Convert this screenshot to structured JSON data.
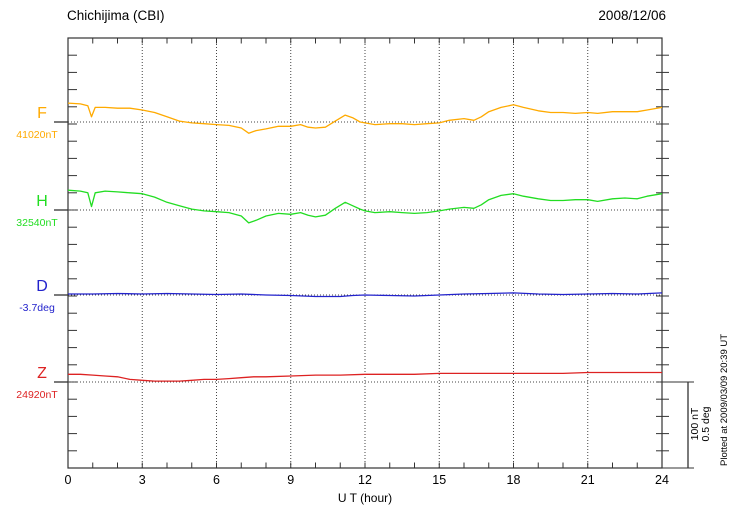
{
  "header": {
    "title": "Chichijima (CBI)",
    "date": "2008/12/06"
  },
  "axis": {
    "xlabel": "U T (hour)",
    "x_ticks": [
      0,
      3,
      6,
      9,
      12,
      15,
      18,
      21,
      24
    ]
  },
  "side_note": "Plotted at 2009/03/09 20:39 UT",
  "scale_bar": {
    "labels": [
      "100 nT",
      "0.5 deg"
    ]
  },
  "colors": {
    "frame": "#333333",
    "grid_dotted": "#444444",
    "text": "#000000",
    "trace_F": "#FFAA00",
    "trace_H": "#22DD22",
    "trace_D": "#2222CC",
    "trace_Z": "#DD2222"
  },
  "chart_data": {
    "type": "line",
    "title": "Chichijima (CBI)",
    "date": "2008/12/06",
    "xlabel": "U T (hour)",
    "x_range": [
      0,
      24
    ],
    "x_ticks": [
      0,
      3,
      6,
      9,
      12,
      15,
      18,
      21,
      24
    ],
    "grid": "dotted vertical lines every 3 h; dotted horizontal baseline per component",
    "legend_position": "left margin component labels",
    "scale_per_division": {
      "nT": 100,
      "deg": 0.5
    },
    "series": [
      {
        "name": "F",
        "unit": "nT",
        "baseline": 41020,
        "baseline_label": "41020nT",
        "color": "#FFAA00",
        "points": [
          [
            0,
            41042
          ],
          [
            0.5,
            41041
          ],
          [
            0.8,
            41039
          ],
          [
            0.95,
            41026
          ],
          [
            1.1,
            41037
          ],
          [
            1.5,
            41037
          ],
          [
            2,
            41036
          ],
          [
            2.5,
            41036
          ],
          [
            3,
            41034
          ],
          [
            3.5,
            41031
          ],
          [
            4,
            41026
          ],
          [
            4.5,
            41021
          ],
          [
            5,
            41019
          ],
          [
            5.5,
            41018
          ],
          [
            6,
            41017
          ],
          [
            6.5,
            41016
          ],
          [
            7,
            41013
          ],
          [
            7.3,
            41007
          ],
          [
            7.6,
            41010
          ],
          [
            8,
            41012
          ],
          [
            8.5,
            41015
          ],
          [
            9,
            41015
          ],
          [
            9.4,
            41017
          ],
          [
            9.7,
            41014
          ],
          [
            10,
            41013
          ],
          [
            10.4,
            41014
          ],
          [
            10.8,
            41021
          ],
          [
            11.2,
            41028
          ],
          [
            11.5,
            41025
          ],
          [
            11.8,
            41020
          ],
          [
            12,
            41019
          ],
          [
            12.4,
            41017
          ],
          [
            13,
            41018
          ],
          [
            13.5,
            41018
          ],
          [
            14,
            41017
          ],
          [
            14.5,
            41018
          ],
          [
            15,
            41019
          ],
          [
            15.4,
            41022
          ],
          [
            16,
            41024
          ],
          [
            16.4,
            41022
          ],
          [
            16.7,
            41026
          ],
          [
            17,
            41032
          ],
          [
            17.5,
            41037
          ],
          [
            18,
            41040
          ],
          [
            18.4,
            41037
          ],
          [
            19,
            41033
          ],
          [
            19.5,
            41031
          ],
          [
            20,
            41031
          ],
          [
            20.5,
            41030
          ],
          [
            21,
            41031
          ],
          [
            21.4,
            41030
          ],
          [
            22,
            41032
          ],
          [
            22.5,
            41032
          ],
          [
            23,
            41032
          ],
          [
            23.4,
            41034
          ],
          [
            24,
            41037
          ]
        ]
      },
      {
        "name": "H",
        "unit": "nT",
        "baseline": 32540,
        "baseline_label": "32540nT",
        "color": "#22DD22",
        "points": [
          [
            0,
            32563
          ],
          [
            0.5,
            32562
          ],
          [
            0.8,
            32560
          ],
          [
            0.95,
            32544
          ],
          [
            1.1,
            32560
          ],
          [
            1.5,
            32562
          ],
          [
            2,
            32561
          ],
          [
            2.5,
            32560
          ],
          [
            3,
            32559
          ],
          [
            3.5,
            32555
          ],
          [
            4,
            32549
          ],
          [
            4.5,
            32545
          ],
          [
            5,
            32541
          ],
          [
            5.5,
            32539
          ],
          [
            6,
            32538
          ],
          [
            6.5,
            32537
          ],
          [
            7,
            32533
          ],
          [
            7.3,
            32525
          ],
          [
            7.6,
            32528
          ],
          [
            8,
            32533
          ],
          [
            8.5,
            32536
          ],
          [
            9,
            32535
          ],
          [
            9.4,
            32537
          ],
          [
            9.7,
            32534
          ],
          [
            10,
            32532
          ],
          [
            10.4,
            32534
          ],
          [
            10.8,
            32542
          ],
          [
            11.2,
            32549
          ],
          [
            11.5,
            32545
          ],
          [
            11.8,
            32541
          ],
          [
            12,
            32539
          ],
          [
            12.4,
            32537
          ],
          [
            13,
            32538
          ],
          [
            13.5,
            32537
          ],
          [
            14,
            32536
          ],
          [
            14.5,
            32537
          ],
          [
            15,
            32539
          ],
          [
            15.4,
            32541
          ],
          [
            16,
            32543
          ],
          [
            16.4,
            32542
          ],
          [
            16.7,
            32546
          ],
          [
            17,
            32552
          ],
          [
            17.5,
            32557
          ],
          [
            18,
            32559
          ],
          [
            18.4,
            32556
          ],
          [
            19,
            32553
          ],
          [
            19.5,
            32551
          ],
          [
            20,
            32551
          ],
          [
            20.5,
            32552
          ],
          [
            21,
            32552
          ],
          [
            21.4,
            32550
          ],
          [
            22,
            32553
          ],
          [
            22.5,
            32554
          ],
          [
            23,
            32553
          ],
          [
            23.4,
            32556
          ],
          [
            24,
            32559
          ]
        ]
      },
      {
        "name": "D",
        "unit": "deg",
        "baseline": -3.7,
        "baseline_label": "-3.7deg",
        "color": "#2222CC",
        "points": [
          [
            0,
            -3.694
          ],
          [
            1,
            -3.694
          ],
          [
            2,
            -3.691
          ],
          [
            3,
            -3.694
          ],
          [
            4,
            -3.691
          ],
          [
            5,
            -3.694
          ],
          [
            6,
            -3.697
          ],
          [
            7,
            -3.694
          ],
          [
            8,
            -3.7
          ],
          [
            9,
            -3.703
          ],
          [
            10,
            -3.709
          ],
          [
            11,
            -3.709
          ],
          [
            11.5,
            -3.703
          ],
          [
            12,
            -3.7
          ],
          [
            13,
            -3.703
          ],
          [
            14,
            -3.706
          ],
          [
            15,
            -3.7
          ],
          [
            16,
            -3.694
          ],
          [
            17,
            -3.691
          ],
          [
            18,
            -3.688
          ],
          [
            19,
            -3.694
          ],
          [
            20,
            -3.697
          ],
          [
            21,
            -3.694
          ],
          [
            22,
            -3.691
          ],
          [
            23,
            -3.694
          ],
          [
            24,
            -3.688
          ]
        ]
      },
      {
        "name": "Z",
        "unit": "nT",
        "baseline": 24920,
        "baseline_label": "24920nT",
        "color": "#DD2222",
        "points": [
          [
            0,
            24929
          ],
          [
            0.5,
            24929
          ],
          [
            1,
            24928
          ],
          [
            1.5,
            24927
          ],
          [
            2,
            24926
          ],
          [
            2.5,
            24923
          ],
          [
            3,
            24922
          ],
          [
            3.5,
            24921
          ],
          [
            4,
            24921
          ],
          [
            4.5,
            24921
          ],
          [
            5,
            24922
          ],
          [
            5.5,
            24923
          ],
          [
            6,
            24923
          ],
          [
            6.5,
            24924
          ],
          [
            7,
            24925
          ],
          [
            7.5,
            24926
          ],
          [
            8,
            24926
          ],
          [
            9,
            24927
          ],
          [
            10,
            24928
          ],
          [
            11,
            24928
          ],
          [
            12,
            24929
          ],
          [
            13,
            24929
          ],
          [
            14,
            24929
          ],
          [
            15,
            24930
          ],
          [
            16,
            24930
          ],
          [
            17,
            24930
          ],
          [
            18,
            24930
          ],
          [
            19,
            24930
          ],
          [
            20,
            24930
          ],
          [
            21,
            24931
          ],
          [
            22,
            24931
          ],
          [
            23,
            24931
          ],
          [
            24,
            24931
          ]
        ]
      }
    ]
  }
}
